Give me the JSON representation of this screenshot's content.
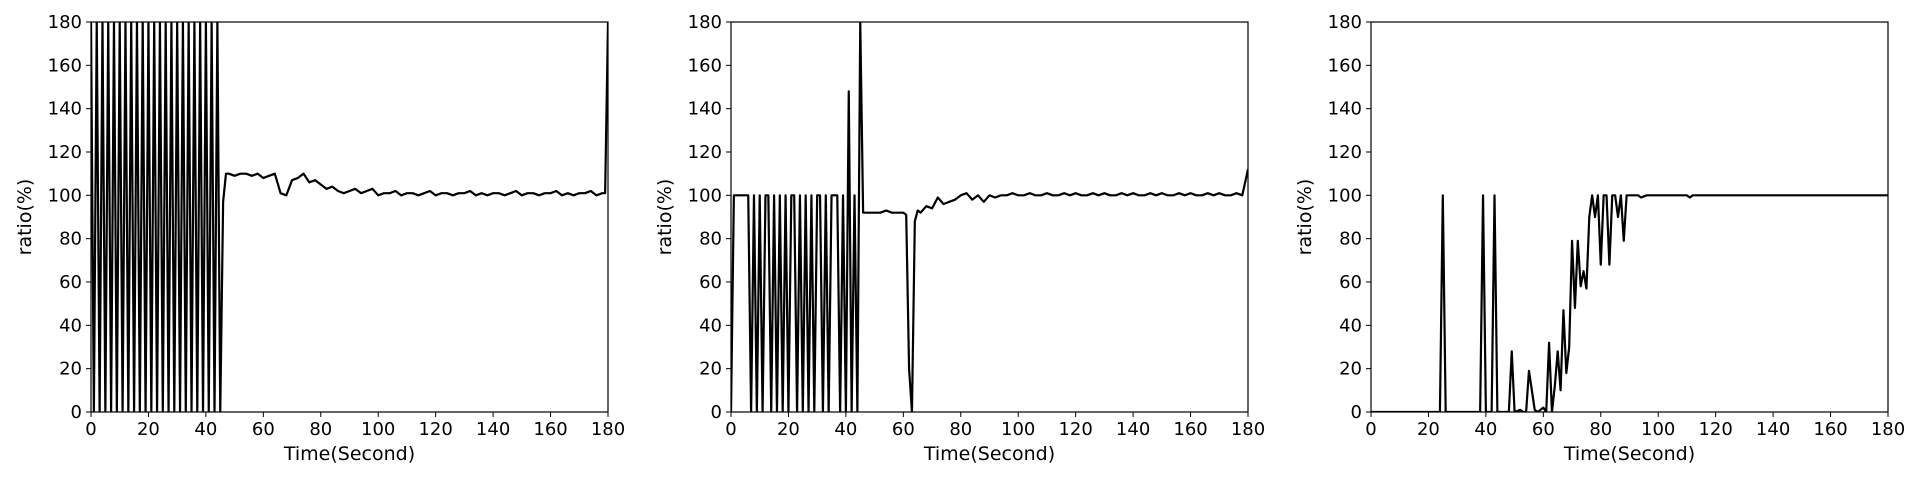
{
  "chart_data": [
    {
      "type": "line",
      "xlabel": "Time(Second)",
      "ylabel": "ratio(%)",
      "color": "#000000",
      "xlim": [
        0,
        180
      ],
      "ylim": [
        0,
        180
      ],
      "xticks": [
        0,
        20,
        40,
        60,
        80,
        100,
        120,
        140,
        160,
        180
      ],
      "yticks": [
        0,
        20,
        40,
        60,
        80,
        100,
        120,
        140,
        160,
        180
      ],
      "x": [
        0,
        1,
        2,
        3,
        4,
        5,
        6,
        7,
        8,
        9,
        10,
        11,
        12,
        13,
        14,
        15,
        16,
        17,
        18,
        19,
        20,
        21,
        22,
        23,
        24,
        25,
        26,
        27,
        28,
        29,
        30,
        31,
        32,
        33,
        34,
        35,
        36,
        37,
        38,
        39,
        40,
        41,
        42,
        43,
        44,
        45,
        46,
        47,
        48,
        50,
        52,
        54,
        56,
        58,
        60,
        62,
        64,
        66,
        68,
        70,
        72,
        74,
        76,
        78,
        80,
        82,
        84,
        86,
        88,
        90,
        92,
        94,
        96,
        98,
        100,
        102,
        104,
        106,
        108,
        110,
        112,
        114,
        116,
        118,
        120,
        122,
        124,
        126,
        128,
        130,
        132,
        134,
        136,
        138,
        140,
        142,
        144,
        146,
        148,
        150,
        152,
        154,
        156,
        158,
        160,
        162,
        164,
        166,
        168,
        170,
        172,
        174,
        176,
        178,
        179,
        180
      ],
      "values": [
        180,
        0,
        180,
        0,
        180,
        0,
        180,
        0,
        180,
        0,
        180,
        0,
        180,
        0,
        180,
        0,
        180,
        0,
        180,
        0,
        180,
        0,
        180,
        0,
        180,
        0,
        180,
        0,
        180,
        0,
        180,
        0,
        180,
        0,
        180,
        0,
        180,
        0,
        180,
        0,
        180,
        0,
        180,
        0,
        180,
        0,
        97,
        110,
        110,
        109,
        110,
        110,
        109,
        110,
        108,
        109,
        110,
        101,
        100,
        107,
        108,
        110,
        106,
        107,
        105,
        103,
        104,
        102,
        101,
        102,
        103,
        101,
        102,
        103,
        100,
        101,
        101,
        102,
        100,
        101,
        101,
        100,
        101,
        102,
        100,
        101,
        101,
        100,
        101,
        101,
        102,
        100,
        101,
        100,
        101,
        101,
        100,
        101,
        102,
        100,
        101,
        101,
        100,
        101,
        101,
        102,
        100,
        101,
        100,
        101,
        101,
        102,
        100,
        101,
        101,
        180
      ]
    },
    {
      "type": "line",
      "xlabel": "Time(Second)",
      "ylabel": "ratio(%)",
      "color": "#000000",
      "xlim": [
        0,
        180
      ],
      "ylim": [
        0,
        180
      ],
      "xticks": [
        0,
        20,
        40,
        60,
        80,
        100,
        120,
        140,
        160,
        180
      ],
      "yticks": [
        0,
        20,
        40,
        60,
        80,
        100,
        120,
        140,
        160,
        180
      ],
      "x": [
        0,
        1,
        2,
        3,
        4,
        5,
        6,
        7,
        8,
        9,
        10,
        11,
        12,
        13,
        14,
        15,
        16,
        17,
        18,
        19,
        20,
        21,
        22,
        23,
        24,
        25,
        26,
        27,
        28,
        29,
        30,
        31,
        32,
        33,
        34,
        35,
        36,
        37,
        38,
        39,
        40,
        41,
        42,
        43,
        44,
        45,
        46,
        48,
        50,
        52,
        54,
        56,
        58,
        60,
        61,
        62,
        63,
        64,
        65,
        66,
        68,
        70,
        72,
        74,
        76,
        78,
        80,
        82,
        84,
        86,
        88,
        90,
        92,
        94,
        96,
        98,
        100,
        102,
        104,
        106,
        108,
        110,
        112,
        114,
        116,
        118,
        120,
        122,
        124,
        126,
        128,
        130,
        132,
        134,
        136,
        138,
        140,
        142,
        144,
        146,
        148,
        150,
        152,
        154,
        156,
        158,
        160,
        162,
        164,
        166,
        168,
        170,
        172,
        174,
        176,
        178,
        180
      ],
      "values": [
        0,
        100,
        100,
        100,
        100,
        100,
        100,
        0,
        100,
        0,
        100,
        0,
        100,
        100,
        0,
        100,
        0,
        100,
        0,
        100,
        0,
        100,
        100,
        0,
        100,
        0,
        100,
        0,
        100,
        0,
        100,
        100,
        0,
        100,
        0,
        100,
        100,
        100,
        0,
        100,
        0,
        148,
        0,
        100,
        0,
        180,
        92,
        92,
        92,
        92,
        93,
        92,
        92,
        92,
        91,
        20,
        0,
        88,
        93,
        92,
        95,
        94,
        99,
        96,
        97,
        98,
        100,
        101,
        98,
        100,
        97,
        100,
        99,
        100,
        100,
        101,
        100,
        100,
        101,
        100,
        100,
        101,
        100,
        100,
        101,
        100,
        101,
        100,
        100,
        101,
        100,
        101,
        100,
        100,
        101,
        100,
        101,
        100,
        100,
        101,
        100,
        101,
        100,
        100,
        101,
        100,
        101,
        100,
        100,
        101,
        100,
        101,
        100,
        100,
        101,
        100,
        112
      ]
    },
    {
      "type": "line",
      "xlabel": "Time(Second)",
      "ylabel": "ratio(%)",
      "color": "#000000",
      "xlim": [
        0,
        180
      ],
      "ylim": [
        0,
        180
      ],
      "xticks": [
        0,
        20,
        40,
        60,
        80,
        100,
        120,
        140,
        160,
        180
      ],
      "yticks": [
        0,
        20,
        40,
        60,
        80,
        100,
        120,
        140,
        160,
        180
      ],
      "x": [
        0,
        10,
        20,
        24,
        25,
        26,
        38,
        39,
        40,
        42,
        43,
        44,
        48,
        49,
        50,
        52,
        53,
        54,
        55,
        56,
        57,
        58,
        60,
        61,
        62,
        63,
        64,
        65,
        66,
        67,
        68,
        69,
        70,
        71,
        72,
        73,
        74,
        75,
        76,
        77,
        78,
        79,
        80,
        81,
        82,
        83,
        84,
        85,
        86,
        87,
        88,
        89,
        90,
        91,
        92,
        93,
        94,
        96,
        98,
        100,
        110,
        111,
        112,
        120,
        140,
        160,
        180
      ],
      "values": [
        0,
        0,
        0,
        0,
        100,
        0,
        0,
        100,
        0,
        0,
        100,
        0,
        0,
        28,
        0,
        1,
        0,
        0,
        19,
        10,
        1,
        0,
        2,
        0,
        32,
        0,
        12,
        28,
        10,
        47,
        18,
        30,
        79,
        48,
        79,
        58,
        65,
        57,
        90,
        100,
        90,
        100,
        68,
        100,
        100,
        68,
        100,
        100,
        90,
        100,
        79,
        100,
        100,
        100,
        100,
        100,
        99,
        100,
        100,
        100,
        100,
        99,
        100,
        100,
        100,
        100,
        100
      ]
    }
  ]
}
